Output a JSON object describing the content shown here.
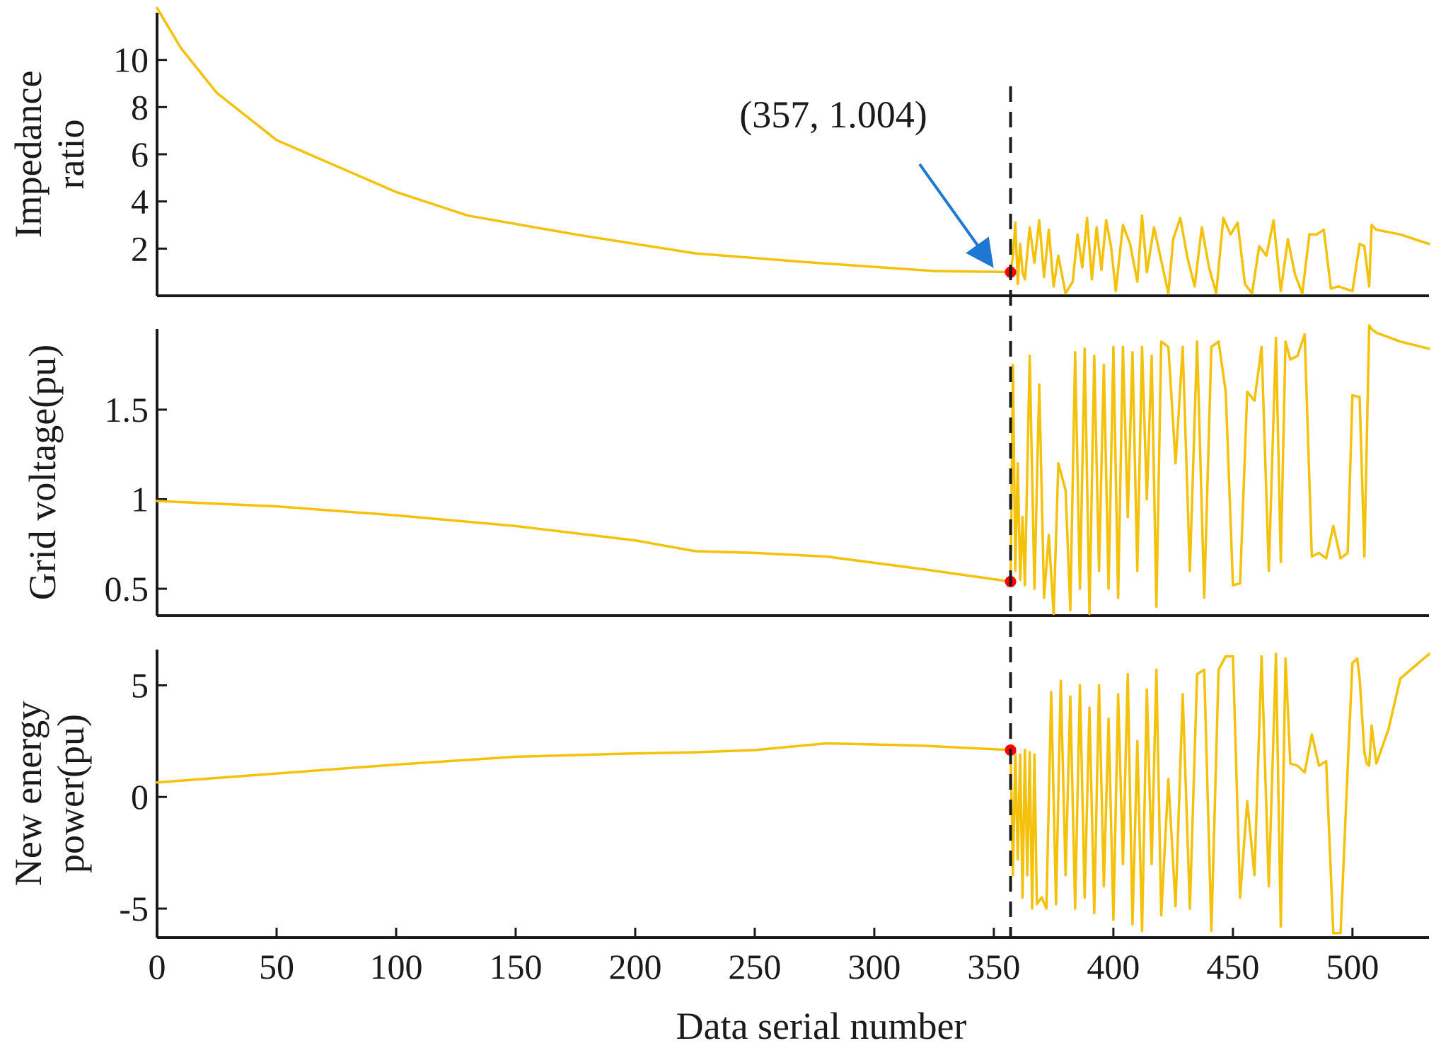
{
  "chart_data": [
    {
      "type": "line",
      "panel": "top",
      "ylabel_lines": [
        "Impedance",
        "ratio"
      ],
      "ylim": [
        0,
        12
      ],
      "yticks": [
        2,
        4,
        6,
        8,
        10
      ],
      "ytick_labels": [
        "2",
        "4",
        "6",
        "8",
        "10"
      ],
      "series": [
        {
          "name": "Impedance ratio",
          "x": [
            0,
            10,
            25,
            50,
            75,
            100,
            130,
            175,
            225,
            275,
            325,
            357,
            358,
            359,
            360,
            361,
            362,
            363,
            365,
            367,
            369,
            371,
            373,
            375,
            377,
            380,
            383,
            385,
            387,
            389,
            391,
            393,
            395,
            397,
            399,
            401,
            404,
            407,
            410,
            412,
            414,
            417,
            420,
            423,
            425,
            428,
            431,
            434,
            437,
            440,
            443,
            446,
            449,
            452,
            455,
            458,
            461,
            464,
            467,
            470,
            473,
            476,
            479,
            482,
            485,
            488,
            491,
            494,
            497,
            500,
            503,
            505,
            507,
            508,
            510,
            520,
            532
          ],
          "values": [
            12.2,
            10.5,
            8.6,
            6.6,
            5.5,
            4.4,
            3.4,
            2.6,
            1.8,
            1.4,
            1.05,
            1.004,
            1.7,
            3.1,
            0.5,
            2.2,
            1.0,
            0.7,
            2.9,
            1.4,
            3.2,
            0.8,
            2.8,
            0.4,
            1.7,
            0.1,
            0.6,
            2.6,
            1.2,
            3.3,
            0.7,
            2.9,
            1.1,
            3.2,
            2.1,
            0.2,
            3.0,
            2.2,
            0.6,
            3.4,
            1.0,
            2.9,
            1.5,
            0.1,
            2.4,
            3.3,
            1.6,
            0.4,
            2.9,
            1.2,
            0.1,
            3.3,
            2.6,
            3.1,
            0.5,
            0.1,
            2.1,
            1.7,
            3.2,
            0.2,
            2.4,
            0.9,
            0.1,
            2.6,
            2.6,
            2.8,
            0.3,
            0.4,
            0.3,
            0.2,
            2.2,
            2.1,
            0.4,
            3.0,
            2.8,
            2.6,
            2.2
          ]
        }
      ],
      "annotation_point": {
        "x": 357,
        "y": 1.004
      }
    },
    {
      "type": "line",
      "panel": "middle",
      "ylabel_lines": [
        "Grid voltage(pu)"
      ],
      "ylim": [
        0.35,
        1.95
      ],
      "yticks": [
        0.5,
        1,
        1.5
      ],
      "ytick_labels": [
        "0.5",
        "1",
        "1.5"
      ],
      "series": [
        {
          "name": "Grid voltage",
          "x": [
            0,
            50,
            100,
            150,
            200,
            225,
            250,
            280,
            320,
            357,
            358,
            359,
            360,
            361,
            362,
            363,
            365,
            367,
            369,
            371,
            373,
            375,
            377,
            380,
            382,
            384,
            386,
            388,
            390,
            392,
            394,
            396,
            398,
            400,
            402,
            404,
            406,
            408,
            410,
            412,
            414,
            416,
            418,
            420,
            423,
            426,
            429,
            432,
            435,
            438,
            441,
            444,
            447,
            450,
            453,
            456,
            459,
            462,
            465,
            468,
            470,
            472,
            474,
            477,
            480,
            483,
            486,
            489,
            492,
            495,
            498,
            500,
            503,
            505,
            507,
            508,
            510,
            520,
            532
          ],
          "values": [
            0.99,
            0.96,
            0.91,
            0.85,
            0.77,
            0.71,
            0.7,
            0.68,
            0.61,
            0.54,
            1.75,
            0.6,
            1.2,
            0.55,
            0.9,
            0.52,
            1.8,
            0.5,
            1.64,
            0.45,
            0.8,
            0.36,
            1.2,
            1.05,
            0.38,
            1.82,
            0.5,
            1.84,
            0.36,
            1.8,
            0.6,
            1.75,
            0.5,
            1.85,
            0.45,
            1.85,
            0.9,
            1.82,
            0.6,
            1.85,
            1.0,
            1.8,
            0.4,
            1.88,
            1.85,
            1.2,
            1.85,
            0.6,
            1.88,
            0.45,
            1.85,
            1.88,
            1.6,
            0.52,
            0.53,
            1.6,
            1.55,
            1.85,
            0.6,
            1.9,
            0.65,
            1.88,
            1.78,
            1.8,
            1.92,
            0.68,
            0.7,
            0.67,
            0.85,
            0.67,
            0.7,
            1.58,
            1.57,
            0.68,
            1.97,
            1.95,
            1.93,
            1.88,
            1.84
          ]
        }
      ],
      "annotation_point": {
        "x": 357,
        "y": 0.54
      }
    },
    {
      "type": "line",
      "panel": "bottom",
      "ylabel_lines": [
        "New energy",
        "power(pu)"
      ],
      "ylim": [
        -6.3,
        6.6
      ],
      "yticks": [
        -5,
        0,
        5
      ],
      "ytick_labels": [
        "-5",
        "0",
        "5"
      ],
      "xlabel": "Data serial number",
      "xlim": [
        0,
        532
      ],
      "xticks": [
        0,
        50,
        100,
        150,
        200,
        250,
        300,
        350,
        400,
        450,
        500
      ],
      "xtick_labels": [
        "0",
        "50",
        "100",
        "150",
        "200",
        "250",
        "300",
        "350",
        "400",
        "450",
        "500"
      ],
      "series": [
        {
          "name": "New energy power",
          "x": [
            0,
            50,
            100,
            150,
            200,
            225,
            250,
            280,
            320,
            357,
            358,
            359,
            360,
            361,
            362,
            363,
            364,
            365,
            366,
            367,
            368,
            370,
            372,
            374,
            376,
            378,
            380,
            382,
            384,
            386,
            388,
            390,
            392,
            394,
            396,
            398,
            400,
            402,
            404,
            406,
            408,
            410,
            412,
            414,
            416,
            418,
            420,
            423,
            426,
            429,
            432,
            435,
            438,
            441,
            444,
            447,
            450,
            453,
            456,
            459,
            462,
            465,
            468,
            470,
            472,
            474,
            477,
            480,
            483,
            486,
            489,
            492,
            495,
            498,
            500,
            502,
            503,
            505,
            506,
            507,
            508,
            510,
            515,
            520,
            532
          ],
          "values": [
            0.65,
            1.05,
            1.45,
            1.8,
            1.95,
            2.0,
            2.1,
            2.4,
            2.3,
            2.1,
            -3.5,
            2.0,
            -2.8,
            1.9,
            -4.5,
            2.1,
            -3.5,
            2.0,
            -5.0,
            1.9,
            -4.8,
            -4.5,
            -5.0,
            4.7,
            -4.8,
            5.2,
            -3.5,
            4.5,
            -5.0,
            5.0,
            -4.5,
            4.0,
            -5.2,
            5.0,
            -4.0,
            3.5,
            -5.5,
            4.6,
            -3.0,
            5.5,
            -5.7,
            2.5,
            -6.0,
            4.8,
            -3.0,
            5.7,
            -5.3,
            0.8,
            -4.9,
            4.6,
            -5.0,
            5.5,
            5.7,
            -6.0,
            5.7,
            6.3,
            6.3,
            -4.5,
            -0.2,
            -3.5,
            6.3,
            -4.0,
            6.4,
            -5.8,
            6.2,
            1.5,
            1.4,
            1.1,
            2.8,
            1.4,
            1.6,
            -6.1,
            -6.1,
            1.3,
            6.0,
            6.2,
            5.3,
            2.0,
            1.5,
            1.4,
            3.2,
            1.5,
            3.0,
            5.3,
            6.4
          ]
        }
      ],
      "annotation_point": {
        "x": 357,
        "y": 2.1
      }
    }
  ],
  "annotation": {
    "label": "(357, 1.004)",
    "vline_x": 357
  },
  "colors": {
    "series": "#f4c20d",
    "marker": "#ff0000",
    "arrow": "#1e78d2",
    "axis": "#1a1a1a"
  }
}
